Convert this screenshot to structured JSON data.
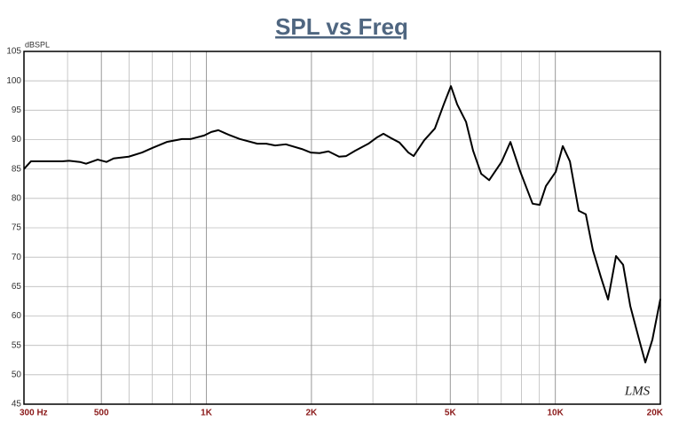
{
  "chart_data": {
    "type": "line",
    "title": "SPL vs Freq",
    "y_label": "dBSPL",
    "watermark": "LMS",
    "x_scale": "log",
    "grid": true,
    "xlim": [
      300,
      20000
    ],
    "ylim": [
      45,
      105
    ],
    "yticks": [
      45,
      50,
      55,
      60,
      65,
      70,
      75,
      80,
      85,
      90,
      95,
      100,
      105
    ],
    "xticks": [
      {
        "value": 300,
        "label": "300 Hz"
      },
      500,
      {
        "value": 1000,
        "label": "1K"
      },
      {
        "value": 2000,
        "label": "2K"
      },
      {
        "value": 5000,
        "label": "5K"
      },
      {
        "value": 10000,
        "label": "10K"
      },
      {
        "value": 20000,
        "label": "20K"
      }
    ],
    "xminor": [
      400,
      600,
      700,
      800,
      900,
      3000,
      4000,
      6000,
      7000,
      8000,
      9000
    ],
    "series": [
      {
        "name": "SPL",
        "color": "#000000",
        "x": [
          300,
          314,
          343,
          386,
          404,
          434,
          452,
          488,
          517,
          542,
          599,
          654,
          701,
          770,
          851,
          902,
          985,
          1033,
          1082,
          1161,
          1246,
          1400,
          1485,
          1574,
          1689,
          1877,
          1990,
          2110,
          2237,
          2400,
          2515,
          2667,
          2912,
          3087,
          3216,
          3371,
          3575,
          3791,
          3926,
          4211,
          4517,
          4790,
          5021,
          5232,
          5549,
          5813,
          6129,
          6462,
          7012,
          7436,
          7930,
          8607,
          9020,
          9398,
          10024,
          10505,
          11011,
          11671,
          12228,
          12812,
          13510,
          14163,
          14928,
          15644,
          16398,
          17382,
          18110,
          18980,
          20000
        ],
        "values": [
          85.0,
          86.3,
          86.3,
          86.3,
          86.4,
          86.2,
          85.9,
          86.6,
          86.2,
          86.8,
          87.1,
          87.8,
          88.6,
          89.6,
          90.1,
          90.1,
          90.7,
          91.3,
          91.6,
          90.8,
          90.1,
          89.3,
          89.3,
          89.0,
          89.2,
          88.4,
          87.8,
          87.7,
          88.0,
          87.1,
          87.2,
          88.1,
          89.3,
          90.4,
          91.0,
          90.3,
          89.5,
          87.8,
          87.2,
          89.9,
          91.9,
          96.0,
          99.1,
          96.0,
          93.0,
          88.1,
          84.2,
          83.1,
          86.2,
          89.6,
          84.6,
          79.1,
          78.9,
          82.1,
          84.5,
          88.9,
          86.3,
          77.9,
          77.3,
          71.2,
          66.6,
          62.8,
          70.2,
          68.7,
          61.7,
          56.0,
          52.1,
          56.0,
          62.9
        ]
      }
    ]
  }
}
